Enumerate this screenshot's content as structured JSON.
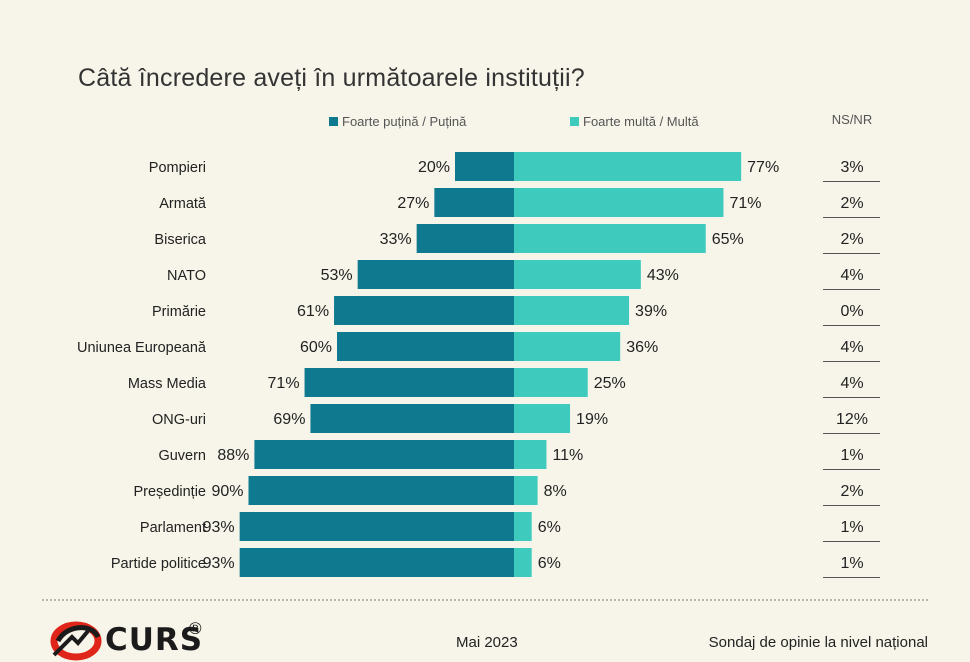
{
  "chart_data": {
    "type": "bar",
    "layout": "diverging-horizontal",
    "title": "Câtă încredere aveți în următoarele instituții?",
    "categories": [
      "Pompieri",
      "Armată",
      "Biserica",
      "NATO",
      "Primărie",
      "Uniunea Europeană",
      "Mass Media",
      "ONG-uri",
      "Guvern",
      "Președinție",
      "Parlament",
      "Partide politice"
    ],
    "series": [
      {
        "name": "Foarte puțină / Puțină",
        "color": "#0f7a8f",
        "values": [
          20,
          27,
          33,
          53,
          61,
          60,
          71,
          69,
          88,
          90,
          93,
          93
        ]
      },
      {
        "name": "Foarte multă / Multă",
        "color": "#3ecbbd",
        "values": [
          77,
          71,
          65,
          43,
          39,
          36,
          25,
          19,
          11,
          8,
          6,
          6
        ]
      }
    ],
    "ns_nr": {
      "label": "NS/NR",
      "values": [
        3,
        2,
        2,
        4,
        0,
        4,
        4,
        12,
        1,
        2,
        1,
        1
      ]
    },
    "value_suffix": "%",
    "xlim": [
      -100,
      100
    ]
  },
  "footer": {
    "brand": "CURS",
    "registered": "®",
    "date": "Mai 2023",
    "note": "Sondaj de opinie la nivel național"
  },
  "colors": {
    "background": "#f7f5e9",
    "dark_teal": "#0f7a8f",
    "light_teal": "#3ecbbd",
    "logo_red": "#e0261b"
  },
  "icons": {
    "logo": "curs-logo-icon"
  }
}
